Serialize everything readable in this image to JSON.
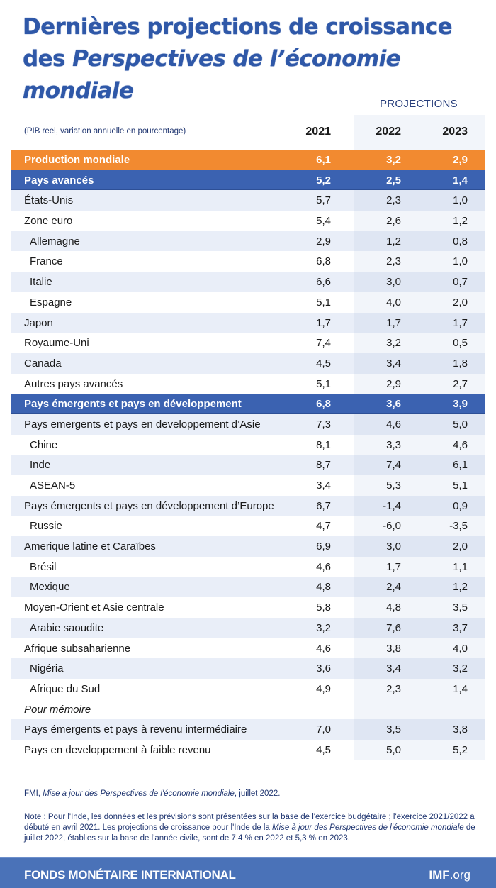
{
  "title": {
    "line1": "Dernières projections de croissance",
    "line2a": "des ",
    "line2b": "Perspectives de l’économie",
    "line3": "mondiale"
  },
  "projections_label": "PROJECTIONS",
  "subtitle": "(PIB reel, variation annuelle en pourcentage)",
  "years": [
    "2021",
    "2022",
    "2023"
  ],
  "colors": {
    "title": "#2f58a8",
    "world_row": "#f28a30",
    "group_row": "#3b62b1",
    "stripe": "#e9eef8",
    "footer": "#4a72b8"
  },
  "rows": [
    {
      "label": "Production mondiale",
      "type": "world",
      "values": [
        "6,1",
        "3,2",
        "2,9"
      ]
    },
    {
      "label": "Pays avancés",
      "type": "group",
      "values": [
        "5,2",
        "2,5",
        "1,4"
      ]
    },
    {
      "label": "États-Unis",
      "type": "normal",
      "values": [
        "5,7",
        "2,3",
        "1,0"
      ]
    },
    {
      "label": "Zone euro",
      "type": "normal",
      "values": [
        "5,4",
        "2,6",
        "1,2"
      ]
    },
    {
      "label": "Allemagne",
      "type": "indent",
      "values": [
        "2,9",
        "1,2",
        "0,8"
      ]
    },
    {
      "label": "France",
      "type": "indent",
      "values": [
        "6,8",
        "2,3",
        "1,0"
      ]
    },
    {
      "label": "Italie",
      "type": "indent",
      "values": [
        "6,6",
        "3,0",
        "0,7"
      ]
    },
    {
      "label": "Espagne",
      "type": "indent",
      "values": [
        "5,1",
        "4,0",
        "2,0"
      ]
    },
    {
      "label": "Japon",
      "type": "normal",
      "values": [
        "1,7",
        "1,7",
        "1,7"
      ]
    },
    {
      "label": "Royaume-Uni",
      "type": "normal",
      "values": [
        "7,4",
        "3,2",
        "0,5"
      ]
    },
    {
      "label": "Canada",
      "type": "normal",
      "values": [
        "4,5",
        "3,4",
        "1,8"
      ]
    },
    {
      "label": "Autres pays avancés",
      "type": "normal",
      "values": [
        "5,1",
        "2,9",
        "2,7"
      ]
    },
    {
      "label": "Pays émergents et pays en développement",
      "type": "group",
      "values": [
        "6,8",
        "3,6",
        "3,9"
      ]
    },
    {
      "label": "Pays emergents et pays en developpement d’Asie",
      "type": "normal",
      "values": [
        "7,3",
        "4,6",
        "5,0"
      ]
    },
    {
      "label": "Chine",
      "type": "indent",
      "values": [
        "8,1",
        "3,3",
        "4,6"
      ]
    },
    {
      "label": "Inde",
      "type": "indent",
      "values": [
        "8,7",
        "7,4",
        "6,1"
      ]
    },
    {
      "label": "ASEAN-5",
      "type": "indent",
      "values": [
        "3,4",
        "5,3",
        "5,1"
      ]
    },
    {
      "label": "Pays émergents et pays en développement d’Europe",
      "type": "normal",
      "values": [
        "6,7",
        "-1,4",
        "0,9"
      ]
    },
    {
      "label": "Russie",
      "type": "indent",
      "values": [
        "4,7",
        "-6,0",
        "-3,5"
      ]
    },
    {
      "label": "Amerique latine et Caraïbes",
      "type": "normal",
      "values": [
        "6,9",
        "3,0",
        "2,0"
      ]
    },
    {
      "label": "Brésil",
      "type": "indent",
      "values": [
        "4,6",
        "1,7",
        "1,1"
      ]
    },
    {
      "label": "Mexique",
      "type": "indent",
      "values": [
        "4,8",
        "2,4",
        "1,2"
      ]
    },
    {
      "label": "Moyen-Orient et Asie centrale",
      "type": "normal",
      "values": [
        "5,8",
        "4,8",
        "3,5"
      ]
    },
    {
      "label": "Arabie saoudite",
      "type": "indent",
      "values": [
        "3,2",
        "7,6",
        "3,7"
      ]
    },
    {
      "label": "Afrique subsaharienne",
      "type": "normal",
      "values": [
        "4,6",
        "3,8",
        "4,0"
      ]
    },
    {
      "label": "Nigéria",
      "type": "indent",
      "values": [
        "3,6",
        "3,4",
        "3,2"
      ]
    },
    {
      "label": "Afrique du Sud",
      "type": "indent",
      "values": [
        "4,9",
        "2,3",
        "1,4"
      ]
    },
    {
      "label": "Pour mémoire",
      "type": "note",
      "values": [
        "",
        "",
        ""
      ]
    },
    {
      "label": "Pays émergents et pays à revenu intermédiaire",
      "type": "normal",
      "values": [
        "7,0",
        "3,5",
        "3,8"
      ]
    },
    {
      "label": "Pays en developpement à faible revenu",
      "type": "normal",
      "values": [
        "4,5",
        "5,0",
        "5,2"
      ]
    }
  ],
  "source": {
    "prefix": "FMI, ",
    "italic": "Mise a jour des Perspectives de l'économie mondiale",
    "suffix": ", juillet 2022."
  },
  "note": {
    "part1": "Note : Pour l'Inde, les données et les prévisions sont présentées sur la base de l'exercice budgétaire ; l'exercice 2021/2022 a débuté en avril 2021. Les projections de croissance pour l'Inde de la ",
    "italic1": "Mise à jour des Perspectives  de l'économie mondiale",
    "part2": " de juillet 2022, établies sur la base de l'année civile, sont de 7,4 % en 2022 et 5,3 % en 2023."
  },
  "footer": {
    "org": "FONDS MONÉTAIRE INTERNATIONAL",
    "url_bold": "IMF",
    "url_rest": ".org"
  }
}
